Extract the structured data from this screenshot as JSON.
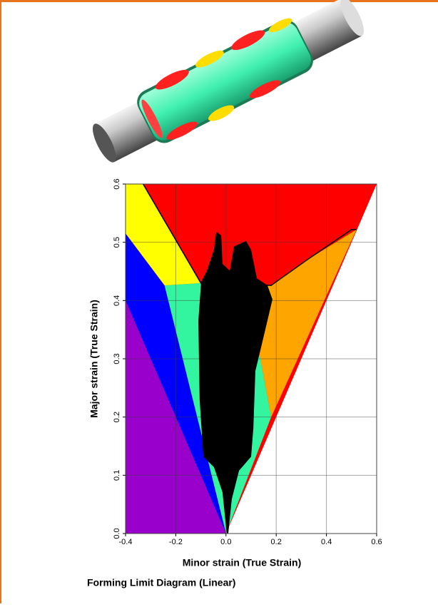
{
  "chart_data": {
    "type": "region",
    "title": "Forming Limit Diagram (Linear)",
    "x_label": "Minor strain (True Strain)",
    "y_label": "Major strain (True Strain)",
    "xlim": [
      -0.4,
      0.6
    ],
    "ylim": [
      0,
      0.6
    ],
    "xticks": [
      -0.4,
      -0.2,
      {
        "value": 0,
        "label": "0.0"
      },
      0.2,
      0.4,
      0.6
    ],
    "yticks": [
      {
        "value": 0,
        "label": "0.0"
      },
      0.1,
      0.2,
      0.3,
      0.4,
      0.5,
      0.6
    ],
    "grid": true,
    "regions": [
      {
        "color": "#ff0000",
        "points": [
          [
            -0.4,
            0
          ],
          [
            0,
            0
          ],
          [
            0.6,
            0.6
          ],
          [
            -0.4,
            0.6
          ]
        ]
      },
      {
        "color": "#ffa500",
        "points": [
          [
            0.18,
            0.2
          ],
          [
            0.52,
            0.522
          ],
          [
            0.32,
            0.469
          ],
          [
            0.18,
            0.426
          ],
          [
            0.08,
            0.43
          ]
        ]
      },
      {
        "color": "#33f5a0",
        "points": [
          [
            0,
            0
          ],
          [
            0.18,
            0.2
          ],
          [
            0.08,
            0.43
          ],
          [
            -0.1,
            0.43
          ],
          [
            -0.245,
            0.426
          ]
        ]
      },
      {
        "color": "#ffff00",
        "points": [
          [
            -0.4,
            0.515
          ],
          [
            -0.245,
            0.426
          ],
          [
            -0.1,
            0.43
          ],
          [
            -0.33,
            0.6
          ],
          [
            -0.4,
            0.6
          ]
        ]
      },
      {
        "color": "#0000ff",
        "points": [
          [
            -0.4,
            0.4
          ],
          [
            0,
            0
          ],
          [
            -0.245,
            0.426
          ],
          [
            -0.4,
            0.515
          ]
        ]
      },
      {
        "color": "#9900cc",
        "points": [
          [
            -0.4,
            0
          ],
          [
            0,
            0
          ],
          [
            -0.4,
            0.4
          ]
        ]
      }
    ],
    "curve": {
      "color": "#000000",
      "x": [
        -0.33,
        -0.1,
        0.18,
        0.32,
        0.5,
        0.52
      ],
      "y": [
        0.6,
        0.43,
        0.426,
        0.469,
        0.522,
        0.522
      ]
    },
    "cloud": {
      "color": "#000000",
      "points": [
        [
          0.003,
          0
        ],
        [
          -0.014,
          0.071
        ],
        [
          -0.048,
          0.114
        ],
        [
          -0.09,
          0.132
        ],
        [
          -0.105,
          0.23
        ],
        [
          -0.11,
          0.365
        ],
        [
          -0.099,
          0.432
        ],
        [
          -0.076,
          0.451
        ],
        [
          -0.048,
          0.487
        ],
        [
          -0.039,
          0.518
        ],
        [
          -0.019,
          0.512
        ],
        [
          -0.014,
          0.463
        ],
        [
          0.015,
          0.451
        ],
        [
          0.032,
          0.493
        ],
        [
          0.08,
          0.502
        ],
        [
          0.1,
          0.487
        ],
        [
          0.123,
          0.438
        ],
        [
          0.165,
          0.426
        ],
        [
          0.185,
          0.402
        ],
        [
          0.151,
          0.34
        ],
        [
          0.117,
          0.279
        ],
        [
          0.109,
          0.181
        ],
        [
          0.1,
          0.132
        ],
        [
          0.052,
          0.108
        ],
        [
          0.023,
          0.059
        ],
        [
          0.009,
          0
        ]
      ]
    }
  }
}
